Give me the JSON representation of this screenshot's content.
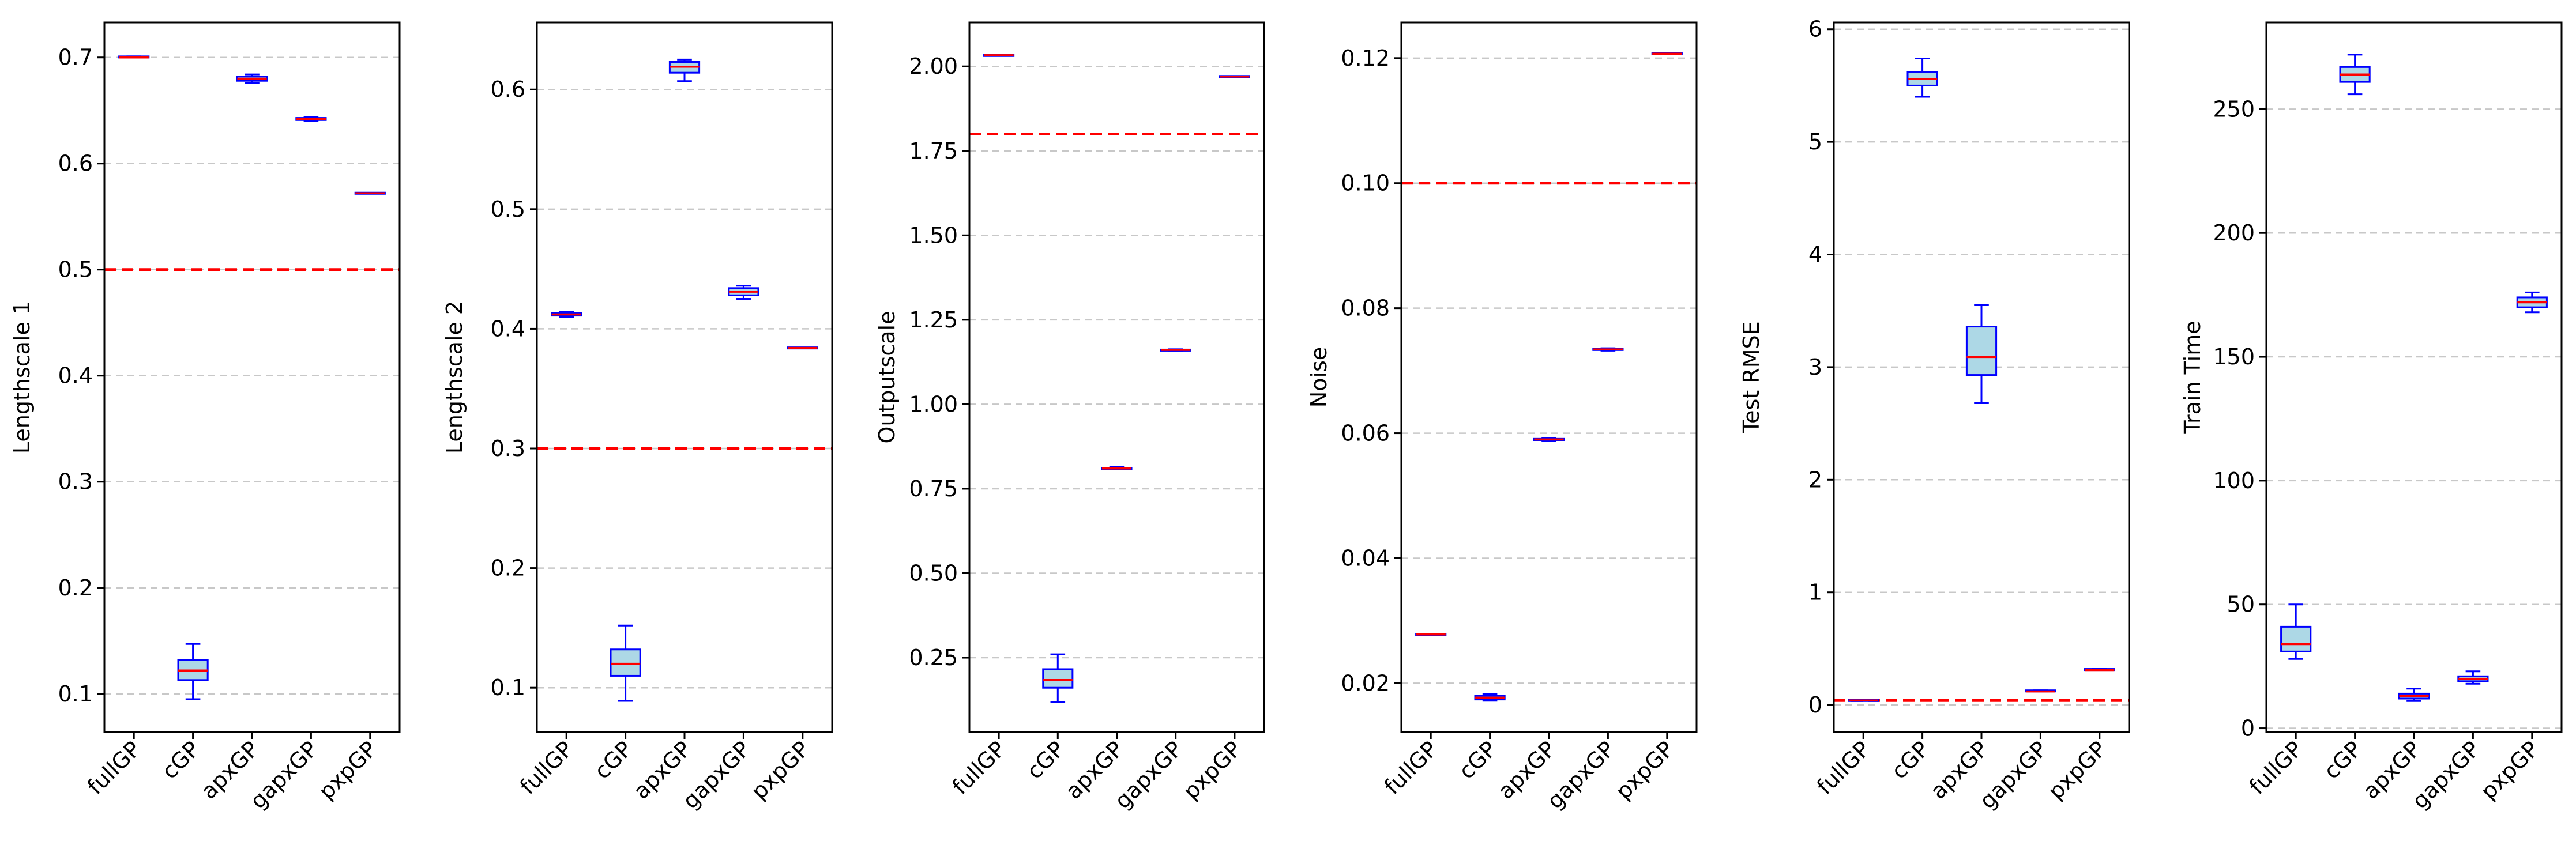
{
  "chart_data": [
    {
      "type": "box",
      "ylabel": "Lengthscale 1",
      "categories": [
        "fullGP",
        "cGP",
        "apxGP",
        "gapxGP",
        "pxpGP"
      ],
      "ylim": [
        0.064,
        0.733
      ],
      "yticks": [
        0.1,
        0.2,
        0.3,
        0.4,
        0.5,
        0.6,
        0.7
      ],
      "ytick_labels": [
        "0.1",
        "0.2",
        "0.3",
        "0.4",
        "0.5",
        "0.6",
        "0.7"
      ],
      "reference_line": 0.5,
      "boxes": [
        {
          "whisker_low": 0.7,
          "q1": 0.7,
          "median": 0.7,
          "q3": 0.701,
          "whisker_high": 0.701
        },
        {
          "whisker_low": 0.095,
          "q1": 0.113,
          "median": 0.122,
          "q3": 0.132,
          "whisker_high": 0.147
        },
        {
          "whisker_low": 0.676,
          "q1": 0.678,
          "median": 0.68,
          "q3": 0.682,
          "whisker_high": 0.684
        },
        {
          "whisker_low": 0.64,
          "q1": 0.641,
          "median": 0.642,
          "q3": 0.643,
          "whisker_high": 0.644
        },
        {
          "whisker_low": 0.572,
          "q1": 0.572,
          "median": 0.572,
          "q3": 0.572,
          "whisker_high": 0.572
        }
      ]
    },
    {
      "type": "box",
      "ylabel": "Lengthscale 2",
      "categories": [
        "fullGP",
        "cGP",
        "apxGP",
        "gapxGP",
        "pxpGP"
      ],
      "ylim": [
        0.063,
        0.656
      ],
      "yticks": [
        0.1,
        0.2,
        0.3,
        0.4,
        0.5,
        0.6
      ],
      "ytick_labels": [
        "0.1",
        "0.2",
        "0.3",
        "0.4",
        "0.5",
        "0.6"
      ],
      "reference_line": 0.3,
      "boxes": [
        {
          "whisker_low": 0.41,
          "q1": 0.411,
          "median": 0.412,
          "q3": 0.413,
          "whisker_high": 0.414
        },
        {
          "whisker_low": 0.089,
          "q1": 0.11,
          "median": 0.12,
          "q3": 0.132,
          "whisker_high": 0.152
        },
        {
          "whisker_low": 0.607,
          "q1": 0.614,
          "median": 0.619,
          "q3": 0.623,
          "whisker_high": 0.625
        },
        {
          "whisker_low": 0.425,
          "q1": 0.428,
          "median": 0.431,
          "q3": 0.434,
          "whisker_high": 0.436
        },
        {
          "whisker_low": 0.384,
          "q1": 0.384,
          "median": 0.384,
          "q3": 0.384,
          "whisker_high": 0.384
        }
      ]
    },
    {
      "type": "box",
      "ylabel": "Outputscale",
      "categories": [
        "fullGP",
        "cGP",
        "apxGP",
        "gapxGP",
        "pxpGP"
      ],
      "ylim": [
        0.03,
        2.13
      ],
      "yticks": [
        0.25,
        0.5,
        0.75,
        1.0,
        1.25,
        1.5,
        1.75,
        2.0
      ],
      "ytick_labels": [
        "0.25",
        "0.50",
        "0.75",
        "1.00",
        "1.25",
        "1.50",
        "1.75",
        "2.00"
      ],
      "reference_line": 1.8,
      "boxes": [
        {
          "whisker_low": 2.031,
          "q1": 2.032,
          "median": 2.033,
          "q3": 2.034,
          "whisker_high": 2.035
        },
        {
          "whisker_low": 0.118,
          "q1": 0.161,
          "median": 0.184,
          "q3": 0.216,
          "whisker_high": 0.26
        },
        {
          "whisker_low": 0.807,
          "q1": 0.809,
          "median": 0.81,
          "q3": 0.812,
          "whisker_high": 0.814
        },
        {
          "whisker_low": 1.159,
          "q1": 1.16,
          "median": 1.161,
          "q3": 1.162,
          "whisker_high": 1.163
        },
        {
          "whisker_low": 1.97,
          "q1": 1.97,
          "median": 1.97,
          "q3": 1.97,
          "whisker_high": 1.97
        }
      ]
    },
    {
      "type": "box",
      "ylabel": "Noise",
      "categories": [
        "fullGP",
        "cGP",
        "apxGP",
        "gapxGP",
        "pxpGP"
      ],
      "ylim": [
        0.0122,
        0.1257
      ],
      "yticks": [
        0.02,
        0.04,
        0.06,
        0.08,
        0.1,
        0.12
      ],
      "ytick_labels": [
        "0.02",
        "0.04",
        "0.06",
        "0.08",
        "0.10",
        "0.12"
      ],
      "reference_line": 0.1,
      "boxes": [
        {
          "whisker_low": 0.0278,
          "q1": 0.0278,
          "median": 0.0278,
          "q3": 0.0279,
          "whisker_high": 0.0279
        },
        {
          "whisker_low": 0.0172,
          "q1": 0.0174,
          "median": 0.0177,
          "q3": 0.018,
          "whisker_high": 0.0183
        },
        {
          "whisker_low": 0.0588,
          "q1": 0.0589,
          "median": 0.059,
          "q3": 0.0591,
          "whisker_high": 0.0592
        },
        {
          "whisker_low": 0.0732,
          "q1": 0.0733,
          "median": 0.0734,
          "q3": 0.0735,
          "whisker_high": 0.0736
        },
        {
          "whisker_low": 0.1207,
          "q1": 0.1207,
          "median": 0.1207,
          "q3": 0.1207,
          "whisker_high": 0.1207
        }
      ]
    },
    {
      "type": "box",
      "ylabel": "Test RMSE",
      "categories": [
        "fullGP",
        "cGP",
        "apxGP",
        "gapxGP",
        "pxpGP"
      ],
      "ylim": [
        -0.24,
        6.06
      ],
      "yticks": [
        0,
        1,
        2,
        3,
        4,
        5,
        6
      ],
      "ytick_labels": [
        "0",
        "1",
        "2",
        "3",
        "4",
        "5",
        "6"
      ],
      "reference_line": 0.04,
      "boxes": [
        {
          "whisker_low": 0.04,
          "q1": 0.04,
          "median": 0.04,
          "q3": 0.04,
          "whisker_high": 0.04
        },
        {
          "whisker_low": 5.4,
          "q1": 5.5,
          "median": 5.56,
          "q3": 5.62,
          "whisker_high": 5.74
        },
        {
          "whisker_low": 2.68,
          "q1": 2.93,
          "median": 3.09,
          "q3": 3.36,
          "whisker_high": 3.55
        },
        {
          "whisker_low": 0.12,
          "q1": 0.12,
          "median": 0.12,
          "q3": 0.13,
          "whisker_high": 0.13
        },
        {
          "whisker_low": 0.31,
          "q1": 0.31,
          "median": 0.31,
          "q3": 0.32,
          "whisker_high": 0.32
        }
      ]
    },
    {
      "type": "box",
      "ylabel": "Train Time",
      "categories": [
        "fullGP",
        "cGP",
        "apxGP",
        "gapxGP",
        "pxpGP"
      ],
      "ylim": [
        -1.5,
        285
      ],
      "yticks": [
        0,
        50,
        100,
        150,
        200,
        250
      ],
      "ytick_labels": [
        "0",
        "50",
        "100",
        "150",
        "200",
        "250"
      ],
      "reference_line": null,
      "boxes": [
        {
          "whisker_low": 28,
          "q1": 31,
          "median": 34,
          "q3": 41,
          "whisker_high": 50
        },
        {
          "whisker_low": 256,
          "q1": 261,
          "median": 264,
          "q3": 267,
          "whisker_high": 272
        },
        {
          "whisker_low": 11,
          "q1": 12,
          "median": 13,
          "q3": 14,
          "whisker_high": 16
        },
        {
          "whisker_low": 18,
          "q1": 19,
          "median": 20,
          "q3": 21,
          "whisker_high": 23
        },
        {
          "whisker_low": 168,
          "q1": 170,
          "median": 172,
          "q3": 174,
          "whisker_high": 176
        }
      ]
    }
  ],
  "colors": {
    "box_fill": "#add8e6",
    "box_edge": "#0000ff",
    "median": "#ff0000",
    "reference_line": "#ff0000",
    "grid": "#c8c8c8",
    "axes": "#000000"
  }
}
